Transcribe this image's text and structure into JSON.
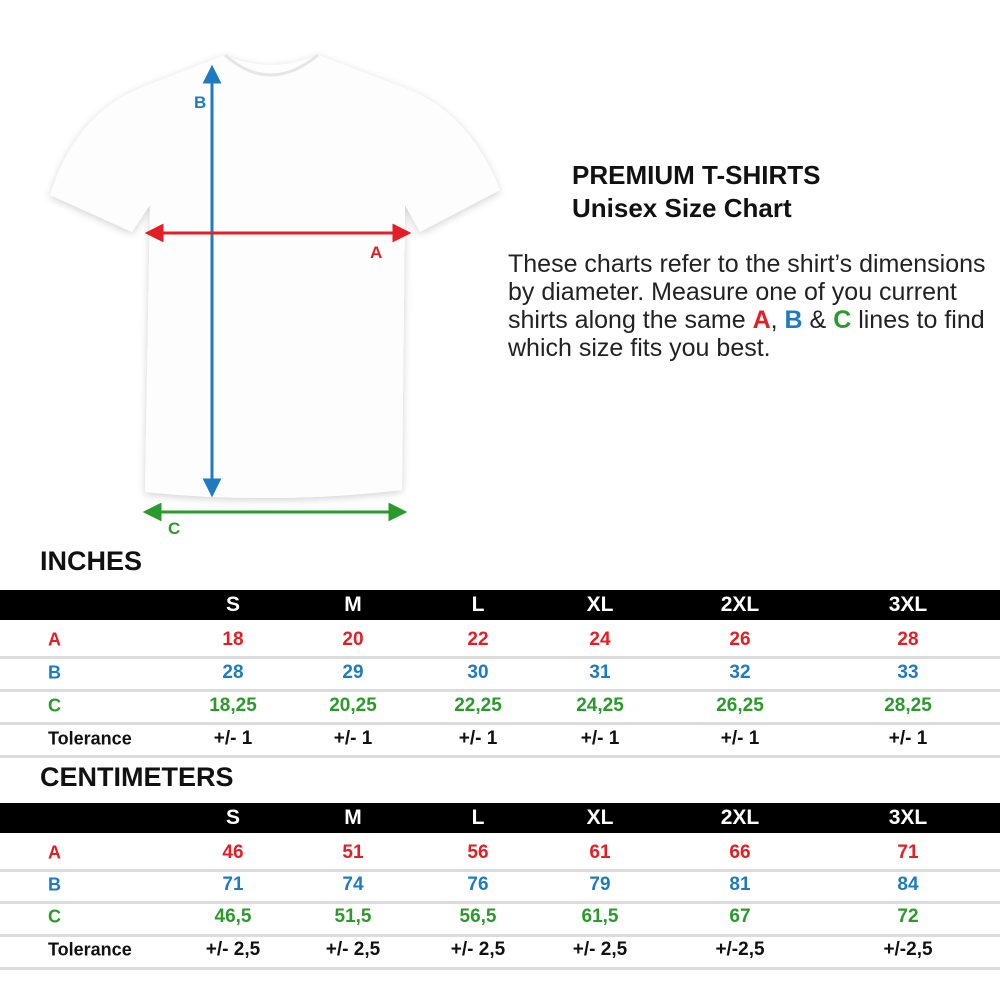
{
  "heading": {
    "line1": "PREMIUM T-SHIRTS",
    "line2": "Unisex Size Chart"
  },
  "description": {
    "part1": "These charts refer to the shirt’s dimensions by diameter. Measure one of you current shirts along the same ",
    "a": "A",
    "sep1": ", ",
    "b": "B",
    "sep2": " & ",
    "c": "C",
    "part2": " lines to find which size fits you best."
  },
  "diagram": {
    "label_a": "A",
    "label_b": "B",
    "label_c": "C"
  },
  "colors": {
    "A": "#e31e24",
    "B": "#1f7bc1",
    "C": "#2a9a2a",
    "tolerance": "#111111"
  },
  "sizes": [
    "S",
    "M",
    "L",
    "XL",
    "2XL",
    "3XL"
  ],
  "tables": [
    {
      "title": "INCHES",
      "rows": [
        {
          "label": "A",
          "values": [
            "18",
            "20",
            "22",
            "24",
            "26",
            "28"
          ]
        },
        {
          "label": "B",
          "values": [
            "28",
            "29",
            "30",
            "31",
            "32",
            "33"
          ]
        },
        {
          "label": "C",
          "values": [
            "18,25",
            "20,25",
            "22,25",
            "24,25",
            "26,25",
            "28,25"
          ]
        },
        {
          "label": "Tolerance",
          "values": [
            "+/- 1",
            "+/- 1",
            "+/- 1",
            "+/- 1",
            "+/- 1",
            "+/- 1"
          ]
        }
      ]
    },
    {
      "title": "CENTIMETERS",
      "rows": [
        {
          "label": "A",
          "values": [
            "46",
            "51",
            "56",
            "61",
            "66",
            "71"
          ]
        },
        {
          "label": "B",
          "values": [
            "71",
            "74",
            "76",
            "79",
            "81",
            "84"
          ]
        },
        {
          "label": "C",
          "values": [
            "46,5",
            "51,5",
            "56,5",
            "61,5",
            "67",
            "72"
          ]
        },
        {
          "label": "Tolerance",
          "values": [
            "+/- 2,5",
            "+/- 2,5",
            "+/- 2,5",
            "+/- 2,5",
            "+/-2,5",
            "+/-2,5"
          ]
        }
      ]
    }
  ]
}
